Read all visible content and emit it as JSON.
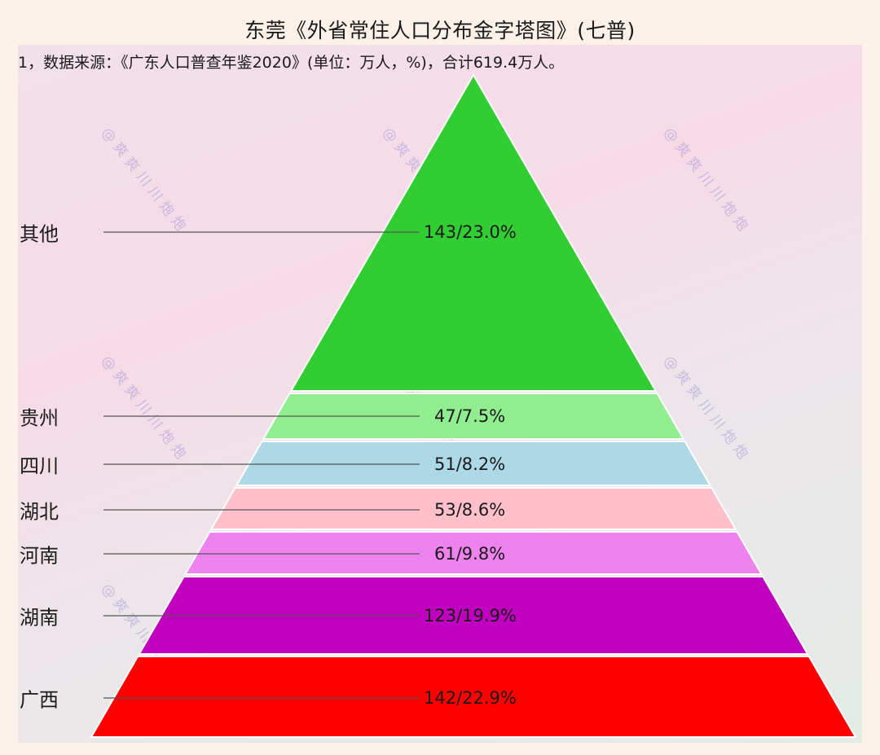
{
  "title": "东莞《外省常住人口分布金字塔图》(七普)",
  "subtitle": "1，数据来源：《广东人口普查年鉴2020》(单位：万人，%)，合计619.4万人。",
  "watermark": "@爽爽川川炮炮",
  "chart_data": {
    "type": "pyramid",
    "title": "东莞《外省常住人口分布金字塔图》(七普)",
    "subtitle": "1，数据来源：《广东人口普查年鉴2020》(单位：万人，%)，合计619.4万人。",
    "unit": "万人, %",
    "total": 619.4,
    "categories": [
      "其他",
      "贵州",
      "四川",
      "湖北",
      "河南",
      "湖南",
      "广西"
    ],
    "values": [
      143,
      47,
      51,
      53,
      61,
      123,
      142
    ],
    "percentages": [
      23.0,
      7.5,
      8.2,
      8.6,
      9.8,
      19.9,
      22.9
    ],
    "data_labels": [
      "143/23.0%",
      "47/7.5%",
      "51/8.2%",
      "53/8.6%",
      "61/9.8%",
      "123/19.9%",
      "142/22.9%"
    ],
    "colors": [
      "#32cd32",
      "#90ee90",
      "#add8e6",
      "#ffc0cb",
      "#ee82ee",
      "#bf00bf",
      "#ff0000"
    ],
    "order": "top-to-bottom",
    "legend": "none",
    "grid": false
  },
  "segments": [
    {
      "label": "其他",
      "value_label": "143/23.0%",
      "color": "#32cd32"
    },
    {
      "label": "贵州",
      "value_label": "47/7.5%",
      "color": "#90ee90"
    },
    {
      "label": "四川",
      "value_label": "51/8.2%",
      "color": "#add8e6"
    },
    {
      "label": "湖北",
      "value_label": "53/8.6%",
      "color": "#ffc0cb"
    },
    {
      "label": "河南",
      "value_label": "61/9.8%",
      "color": "#ee82ee"
    },
    {
      "label": "湖南",
      "value_label": "123/19.9%",
      "color": "#bf00bf"
    },
    {
      "label": "广西",
      "value_label": "142/22.9%",
      "color": "#ff0000"
    }
  ]
}
